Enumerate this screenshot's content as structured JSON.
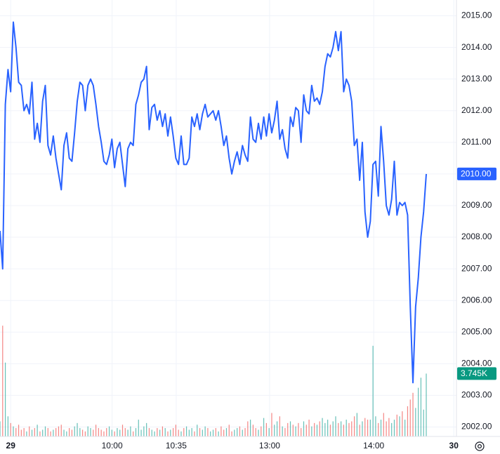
{
  "chart_data": {
    "type": "line",
    "xlim": [
      0,
      171
    ],
    "ylim": [
      2001.7,
      2015.5
    ],
    "y2lim": [
      0,
      26000
    ],
    "grid": true,
    "xticks": [
      {
        "value": 4,
        "label": "29"
      },
      {
        "value": 42,
        "label": "10:00"
      },
      {
        "value": 66,
        "label": "10:35"
      },
      {
        "value": 101,
        "label": "13:00"
      },
      {
        "value": 140,
        "label": "14:00"
      },
      {
        "value": 170,
        "label": "30"
      }
    ],
    "yticks": [
      {
        "value": 2002,
        "label": "2002.00"
      },
      {
        "value": 2003,
        "label": "2003.00"
      },
      {
        "value": 2004,
        "label": "2004.00"
      },
      {
        "value": 2005,
        "label": "2005.00"
      },
      {
        "value": 2006,
        "label": "2006.00"
      },
      {
        "value": 2007,
        "label": "2007.00"
      },
      {
        "value": 2008,
        "label": "2008.00"
      },
      {
        "value": 2009,
        "label": "2009.00"
      },
      {
        "value": 2010,
        "label": "2010.00"
      },
      {
        "value": 2011,
        "label": "2011.00"
      },
      {
        "value": 2012,
        "label": "2012.00"
      },
      {
        "value": 2013,
        "label": "2013.00"
      },
      {
        "value": 2014,
        "label": "2014.00"
      },
      {
        "value": 2015,
        "label": "2015.00"
      }
    ],
    "series": [
      {
        "color": "#2962ff",
        "values": [
          2008.2,
          2007.0,
          2012.2,
          2013.3,
          2012.6,
          2014.8,
          2014.0,
          2012.9,
          2012.8,
          2012.0,
          2012.2,
          2011.9,
          2012.9,
          2011.1,
          2011.6,
          2011.0,
          2012.3,
          2012.8,
          2010.9,
          2010.6,
          2011.2,
          2010.5,
          2010.0,
          2009.5,
          2010.9,
          2011.3,
          2010.5,
          2010.4,
          2011.3,
          2012.3,
          2012.9,
          2012.8,
          2012.0,
          2012.8,
          2013.0,
          2012.8,
          2012.2,
          2011.5,
          2011.0,
          2010.4,
          2010.3,
          2010.6,
          2011.1,
          2010.2,
          2010.8,
          2011.0,
          2010.3,
          2009.6,
          2010.8,
          2011.0,
          2010.9,
          2012.2,
          2012.5,
          2012.9,
          2013.0,
          2013.4,
          2011.4,
          2012.1,
          2012.2,
          2011.7,
          2012.0,
          2011.5,
          2011.9,
          2011.2,
          2011.8,
          2011.2,
          2010.5,
          2010.3,
          2011.2,
          2010.3,
          2010.3,
          2010.5,
          2011.8,
          2011.5,
          2011.9,
          2011.4,
          2011.9,
          2012.2,
          2011.8,
          2011.9,
          2012.0,
          2011.7,
          2012.0,
          2011.5,
          2010.9,
          2011.2,
          2010.5,
          2010.0,
          2010.4,
          2010.7,
          2010.3,
          2010.9,
          2010.6,
          2010.4,
          2011.8,
          2011.1,
          2011.0,
          2011.6,
          2011.1,
          2011.8,
          2011.2,
          2011.9,
          2011.3,
          2011.7,
          2012.3,
          2011.1,
          2011.4,
          2010.8,
          2010.5,
          2011.8,
          2011.5,
          2012.1,
          2012.0,
          2011.0,
          2012.5,
          2012.0,
          2011.9,
          2012.8,
          2012.3,
          2012.4,
          2012.2,
          2012.6,
          2013.4,
          2013.8,
          2013.7,
          2014.0,
          2014.5,
          2013.9,
          2014.5,
          2012.6,
          2013.0,
          2012.8,
          2012.3,
          2010.9,
          2011.1,
          2009.8,
          2011.0,
          2008.8,
          2008.0,
          2008.5,
          2010.3,
          2010.4,
          2009.3,
          2011.5,
          2010.4,
          2009.0,
          2008.7,
          2009.2,
          2010.4,
          2008.7,
          2009.1,
          2009.0,
          2009.1,
          2008.7,
          2005.8,
          2003.4,
          2005.8,
          2006.7,
          2008.0,
          2008.8,
          2010.0
        ],
        "value_labels": [
          null,
          null,
          null,
          null,
          null,
          null,
          null,
          null,
          null,
          null,
          null,
          null,
          null,
          null,
          null,
          null,
          null,
          null,
          null,
          null,
          null,
          null,
          null,
          null,
          null,
          null,
          null,
          null,
          null,
          null,
          null,
          null,
          null,
          null,
          null,
          null,
          null,
          null,
          null,
          null,
          null,
          null,
          null,
          null,
          null,
          null,
          null,
          null,
          null,
          null,
          null,
          null,
          null,
          null,
          null,
          null,
          null,
          null,
          null,
          null,
          null,
          null,
          null,
          null,
          null,
          null,
          null,
          null,
          null,
          null,
          null,
          null,
          null,
          null,
          null,
          null,
          null,
          null,
          null,
          null,
          null,
          null,
          null,
          null,
          null,
          null,
          null,
          null,
          null,
          null,
          null,
          null,
          null,
          null,
          null,
          null,
          null,
          null,
          null,
          null,
          null,
          null,
          null,
          null,
          null,
          null,
          null,
          null,
          null,
          null,
          null,
          null,
          null,
          null,
          null,
          null,
          null,
          null,
          null,
          null,
          null,
          null,
          null,
          null,
          null,
          null,
          null,
          null,
          null,
          null,
          null,
          null,
          null,
          null,
          null,
          null,
          null,
          null,
          null,
          null,
          null,
          null,
          null,
          null,
          null,
          null,
          null,
          null,
          null,
          null,
          null,
          null,
          null,
          null,
          null,
          null,
          null,
          null,
          null,
          null,
          "2010.00"
        ]
      },
      {
        "type": "bar",
        "axis": "y2",
        "up_color": "#26a69a",
        "down_color": "#ef5350",
        "label_color": "#089981",
        "values": [
          900,
          6600,
          4400,
          1200,
          800,
          600,
          500,
          700,
          400,
          500,
          300,
          600,
          400,
          500,
          700,
          300,
          400,
          600,
          500,
          300,
          400,
          500,
          600,
          700,
          400,
          300,
          500,
          400,
          600,
          800,
          500,
          400,
          300,
          600,
          500,
          400,
          700,
          500,
          400,
          300,
          500,
          600,
          400,
          300,
          500,
          400,
          700,
          500,
          400,
          600,
          300,
          500,
          1000,
          400,
          600,
          800,
          500,
          400,
          300,
          500,
          400,
          600,
          500,
          300,
          400,
          500,
          700,
          400,
          300,
          500,
          600,
          400,
          500,
          300,
          700,
          500,
          400,
          600,
          500,
          300,
          400,
          500,
          300,
          600,
          400,
          500,
          700,
          300,
          400,
          500,
          600,
          400,
          500,
          900,
          1000,
          700,
          500,
          400,
          600,
          1100,
          800,
          500,
          1400,
          700,
          900,
          1200,
          600,
          500,
          800,
          900,
          700,
          600,
          800,
          500,
          900,
          700,
          1000,
          600,
          800,
          700,
          900,
          1100,
          800,
          1000,
          700,
          900,
          1200,
          800,
          900,
          700,
          1000,
          800,
          900,
          1200,
          1400,
          700,
          900,
          1100,
          1000,
          1000,
          5400,
          1200,
          800,
          1000,
          1400,
          900,
          1100,
          800,
          1000,
          1300,
          1200,
          1500,
          1000,
          1800,
          2200,
          2600,
          1700,
          2900,
          3500,
          1600,
          3745
        ],
        "value_labels": [
          null,
          null,
          null,
          null,
          null,
          null,
          null,
          null,
          null,
          null,
          null,
          null,
          null,
          null,
          null,
          null,
          null,
          null,
          null,
          null,
          null,
          null,
          null,
          null,
          null,
          null,
          null,
          null,
          null,
          null,
          null,
          null,
          null,
          null,
          null,
          null,
          null,
          null,
          null,
          null,
          null,
          null,
          null,
          null,
          null,
          null,
          null,
          null,
          null,
          null,
          null,
          null,
          null,
          null,
          null,
          null,
          null,
          null,
          null,
          null,
          null,
          null,
          null,
          null,
          null,
          null,
          null,
          null,
          null,
          null,
          null,
          null,
          null,
          null,
          null,
          null,
          null,
          null,
          null,
          null,
          null,
          null,
          null,
          null,
          null,
          null,
          null,
          null,
          null,
          null,
          null,
          null,
          null,
          null,
          null,
          null,
          null,
          null,
          null,
          null,
          null,
          null,
          null,
          null,
          null,
          null,
          null,
          null,
          null,
          null,
          null,
          null,
          null,
          null,
          null,
          null,
          null,
          null,
          null,
          null,
          null,
          null,
          null,
          null,
          null,
          null,
          null,
          null,
          null,
          null,
          null,
          null,
          null,
          null,
          null,
          null,
          null,
          null,
          null,
          null,
          null,
          null,
          null,
          null,
          null,
          null,
          null,
          null,
          null,
          null,
          null,
          null,
          null,
          null,
          null,
          null,
          null,
          null,
          null,
          null,
          "3.745K"
        ]
      }
    ]
  }
}
